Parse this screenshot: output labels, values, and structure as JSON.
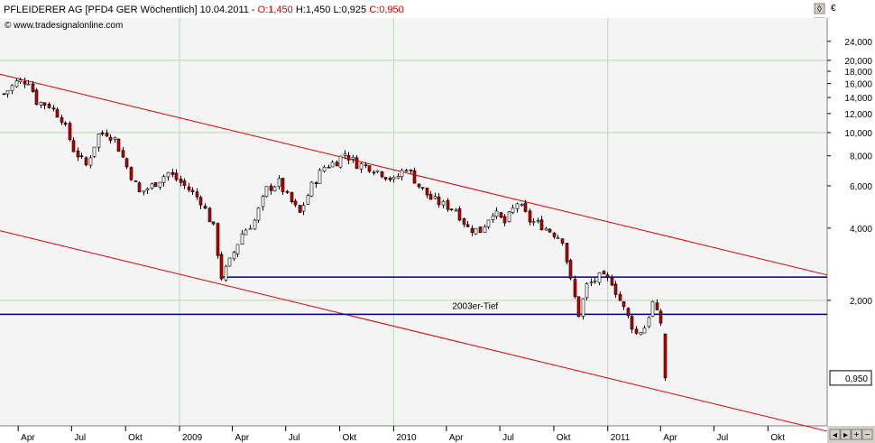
{
  "header": {
    "name_prefix": "PFLEIDERER AG [PFD4 GER  Wöchentlich] 10.04.2011 - ",
    "open": "O:1,450",
    "high": "H:1,450",
    "low": "L:0,925",
    "close": "C:0,950",
    "open_color": "#d00000",
    "close_color": "#d00000"
  },
  "source": "www.tradesignalonline.com",
  "window_buttons": {
    "restore": "◊",
    "close": "×"
  },
  "scroll_buttons": {
    "left": "◂",
    "right": "▸",
    "zoom_in": "+",
    "zoom_out": "−"
  },
  "colors": {
    "plot_bg": "#f4f4f4",
    "grid": "#b7d7b7",
    "up_candle": "#ffffff",
    "down_candle": "#c00000",
    "channel": "#e00000",
    "support": "#000080",
    "last_price_box": "#ffffff"
  },
  "chart_data": {
    "type": "candlestick",
    "currency_label": "€",
    "y_scale": "log",
    "ylim": [
      0.6,
      30
    ],
    "yticks": [
      {
        "v": 24,
        "label": "24,000"
      },
      {
        "v": 20,
        "label": "20,000"
      },
      {
        "v": 18,
        "label": "18,000"
      },
      {
        "v": 16,
        "label": "16,000"
      },
      {
        "v": 14,
        "label": "14,000"
      },
      {
        "v": 12,
        "label": "12,000"
      },
      {
        "v": 10,
        "label": "10,000"
      },
      {
        "v": 8,
        "label": "8,000"
      },
      {
        "v": 6,
        "label": "6,000"
      },
      {
        "v": 4,
        "label": "4,000"
      },
      {
        "v": 2,
        "label": "2,000"
      }
    ],
    "y_gridlines": [
      20,
      10,
      2
    ],
    "xlim": [
      "2008-03-01",
      "2012-01-10"
    ],
    "xticks": [
      {
        "d": "2008-04-01",
        "label": "Apr"
      },
      {
        "d": "2008-07-01",
        "label": "Jul"
      },
      {
        "d": "2008-10-01",
        "label": "Okt"
      },
      {
        "d": "2009-01-01",
        "label": "2009"
      },
      {
        "d": "2009-04-01",
        "label": "Apr"
      },
      {
        "d": "2009-07-01",
        "label": "Jul"
      },
      {
        "d": "2009-10-01",
        "label": "Okt"
      },
      {
        "d": "2010-01-01",
        "label": "2010"
      },
      {
        "d": "2010-04-01",
        "label": "Apr"
      },
      {
        "d": "2010-07-01",
        "label": "Jul"
      },
      {
        "d": "2010-10-01",
        "label": "Okt"
      },
      {
        "d": "2011-01-01",
        "label": "2011"
      },
      {
        "d": "2011-04-01",
        "label": "Apr"
      },
      {
        "d": "2011-07-01",
        "label": "Jul"
      },
      {
        "d": "2011-10-01",
        "label": "Okt"
      }
    ],
    "x_gridlines": [
      "2009-01-01",
      "2010-01-01",
      "2011-01-01"
    ],
    "keyframes": [
      [
        "2008-03-07",
        14.5
      ],
      [
        "2008-03-28",
        16.2
      ],
      [
        "2008-04-18",
        16.5
      ],
      [
        "2008-05-02",
        13.5
      ],
      [
        "2008-05-23",
        13.0
      ],
      [
        "2008-06-13",
        11.5
      ],
      [
        "2008-07-04",
        8.5
      ],
      [
        "2008-07-25",
        7.3
      ],
      [
        "2008-08-15",
        9.8
      ],
      [
        "2008-08-29",
        10.0
      ],
      [
        "2008-09-12",
        9.4
      ],
      [
        "2008-10-03",
        7.2
      ],
      [
        "2008-10-24",
        5.6
      ],
      [
        "2008-11-14",
        6.0
      ],
      [
        "2008-12-12",
        6.8
      ],
      [
        "2009-01-02",
        6.2
      ],
      [
        "2009-01-16",
        5.8
      ],
      [
        "2009-02-06",
        5.2
      ],
      [
        "2009-02-27",
        4.0
      ],
      [
        "2009-03-13",
        2.5
      ],
      [
        "2009-03-27",
        2.9
      ],
      [
        "2009-04-17",
        3.8
      ],
      [
        "2009-05-08",
        4.3
      ],
      [
        "2009-05-29",
        5.8
      ],
      [
        "2009-06-19",
        6.2
      ],
      [
        "2009-07-03",
        5.4
      ],
      [
        "2009-07-24",
        4.6
      ],
      [
        "2009-08-14",
        6.0
      ],
      [
        "2009-09-04",
        7.2
      ],
      [
        "2009-09-25",
        7.6
      ],
      [
        "2009-10-09",
        8.2
      ],
      [
        "2009-10-30",
        7.4
      ],
      [
        "2009-11-20",
        7.2
      ],
      [
        "2009-12-11",
        6.8
      ],
      [
        "2010-01-01",
        6.3
      ],
      [
        "2010-01-22",
        7.2
      ],
      [
        "2010-02-12",
        6.0
      ],
      [
        "2010-03-05",
        5.3
      ],
      [
        "2010-03-26",
        5.0
      ],
      [
        "2010-04-16",
        4.8
      ],
      [
        "2010-05-07",
        4.0
      ],
      [
        "2010-05-28",
        3.9
      ],
      [
        "2010-06-18",
        4.7
      ],
      [
        "2010-07-09",
        4.2
      ],
      [
        "2010-07-30",
        5.1
      ],
      [
        "2010-08-20",
        4.3
      ],
      [
        "2010-09-10",
        4.1
      ],
      [
        "2010-10-01",
        3.8
      ],
      [
        "2010-10-15",
        3.6
      ],
      [
        "2010-10-29",
        2.4
      ],
      [
        "2010-11-12",
        1.75
      ],
      [
        "2010-11-26",
        2.3
      ],
      [
        "2010-12-17",
        2.5
      ],
      [
        "2011-01-07",
        2.4
      ],
      [
        "2011-01-21",
        2.0
      ],
      [
        "2011-02-04",
        1.7
      ],
      [
        "2011-02-18",
        1.45
      ],
      [
        "2011-03-04",
        1.55
      ],
      [
        "2011-03-18",
        1.95
      ],
      [
        "2011-03-25",
        1.75
      ],
      [
        "2011-04-01",
        1.62
      ],
      [
        "2011-04-08",
        0.95
      ]
    ],
    "last_candle": {
      "date": "2011-04-08",
      "open": 1.45,
      "high": 1.45,
      "low": 0.925,
      "close": 0.95
    },
    "last_price_label": "0,950",
    "lines": [
      {
        "name": "channel-top",
        "kind": "channel",
        "from": [
          "2008-03-01",
          17.5
        ],
        "to": [
          "2012-01-10",
          2.55
        ]
      },
      {
        "name": "channel-bottom",
        "kind": "channel",
        "from": [
          "2008-03-01",
          3.9
        ],
        "to": [
          "2012-01-10",
          0.57
        ]
      },
      {
        "name": "support-2009",
        "kind": "support",
        "from": [
          "2009-03-13",
          2.5
        ],
        "to": [
          "2012-01-10",
          2.5
        ]
      },
      {
        "name": "support-2003",
        "kind": "support",
        "from": [
          "2008-03-01",
          1.75
        ],
        "to": [
          "2012-01-10",
          1.75
        ]
      }
    ],
    "annotations": [
      {
        "text": "2003er-Tief",
        "d": "2010-05-20",
        "v": 1.78
      }
    ]
  }
}
